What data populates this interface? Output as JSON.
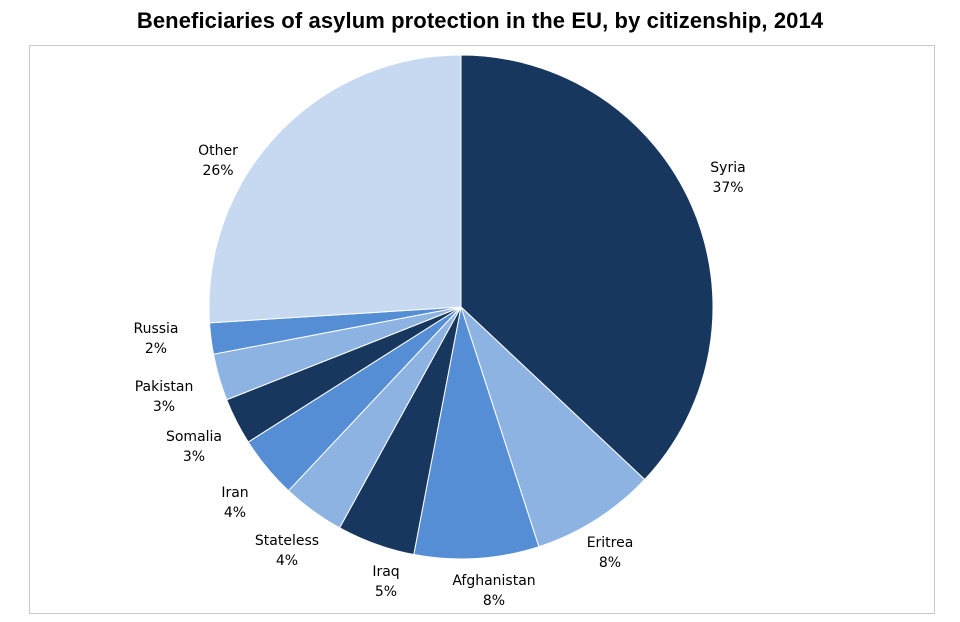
{
  "chart_data": {
    "type": "pie",
    "title": "Beneficiaries of asylum protection in the EU, by citizenship, 2014",
    "slices": [
      {
        "label": "Syria",
        "value": 37,
        "pct_label": "37%",
        "color": "#17375e"
      },
      {
        "label": "Eritrea",
        "value": 8,
        "pct_label": "8%",
        "color": "#8db3e2"
      },
      {
        "label": "Afghanistan",
        "value": 8,
        "pct_label": "8%",
        "color": "#558ed5"
      },
      {
        "label": "Iraq",
        "value": 5,
        "pct_label": "5%",
        "color": "#17375e"
      },
      {
        "label": "Stateless",
        "value": 4,
        "pct_label": "4%",
        "color": "#8db3e2"
      },
      {
        "label": "Iran",
        "value": 4,
        "pct_label": "4%",
        "color": "#558ed5"
      },
      {
        "label": "Somalia",
        "value": 3,
        "pct_label": "3%",
        "color": "#17375e"
      },
      {
        "label": "Pakistan",
        "value": 3,
        "pct_label": "3%",
        "color": "#8db3e2"
      },
      {
        "label": "Russia",
        "value": 2,
        "pct_label": "2%",
        "color": "#558ed5"
      },
      {
        "label": "Other",
        "value": 26,
        "pct_label": "26%",
        "color": "#c6d9f1"
      }
    ],
    "start_angle": "12 o'clock",
    "direction": "clockwise",
    "legend": "none"
  }
}
